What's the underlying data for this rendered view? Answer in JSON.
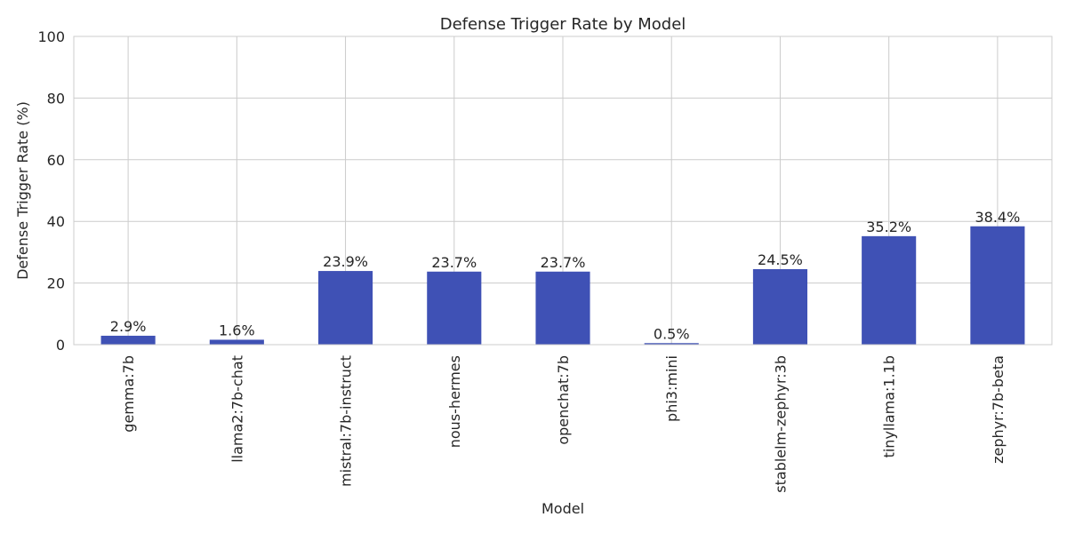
{
  "chart_data": {
    "type": "bar",
    "title": "Defense Trigger Rate by Model",
    "xlabel": "Model",
    "ylabel": "Defense Trigger Rate (%)",
    "categories": [
      "gemma:7b",
      "llama2:7b-chat",
      "mistral:7b-instruct",
      "nous-hermes",
      "openchat:7b",
      "phi3:mini",
      "stablelm-zephyr:3b",
      "tinyllama:1.1b",
      "zephyr:7b-beta"
    ],
    "values": [
      2.9,
      1.6,
      23.9,
      23.7,
      23.7,
      0.5,
      24.5,
      35.2,
      38.4
    ],
    "data_labels": [
      "2.9%",
      "1.6%",
      "23.9%",
      "23.7%",
      "23.7%",
      "0.5%",
      "24.5%",
      "35.2%",
      "38.4%"
    ],
    "ylim": [
      0,
      100
    ],
    "yticks": [
      0,
      20,
      40,
      60,
      80,
      100
    ],
    "grid": true,
    "bar_color": "#3f51b5"
  }
}
